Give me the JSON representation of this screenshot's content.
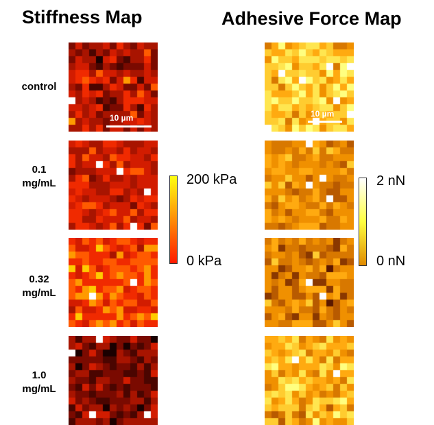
{
  "titles": {
    "stiffness": "Stiffness Map",
    "adhesion": "Adhesive Force Map"
  },
  "rows": [
    {
      "label": "control"
    },
    {
      "label": "0.1\nmg/mL"
    },
    {
      "label": "0.32\nmg/mL"
    },
    {
      "label": "1.0\nmg/mL"
    }
  ],
  "scale_bar": {
    "label": "10 µm"
  },
  "colorbars": {
    "stiffness": {
      "max_label": "200 kPa",
      "min_label": "0 kPa",
      "colors": [
        "#ff1a00",
        "#ffff10"
      ]
    },
    "adhesion": {
      "max_label": "2 nN",
      "min_label": "0 nN",
      "colors": [
        "#e08a00",
        "#ffff40",
        "#ffffff"
      ]
    }
  },
  "palettes": {
    "stiffness": [
      "#1a0000",
      "#4a0500",
      "#7a0a00",
      "#a81400",
      "#d21c00",
      "#f02a00",
      "#ff5a00",
      "#ff9a00",
      "#ffcc00",
      "#ffffff"
    ],
    "adhesion": [
      "#2a0800",
      "#5a1800",
      "#8a3800",
      "#b85a00",
      "#d87800",
      "#f09000",
      "#ffaa10",
      "#ffcc30",
      "#ffe650",
      "#ffff80",
      "#ffffff"
    ]
  }
}
